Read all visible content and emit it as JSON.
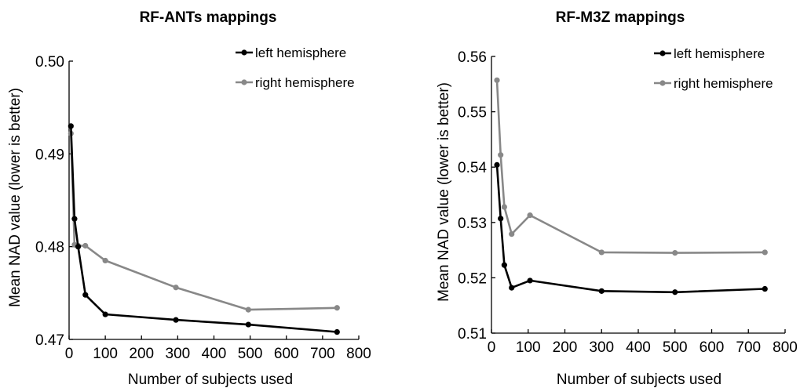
{
  "chart_data": [
    {
      "type": "line",
      "title": "RF-ANTs mappings",
      "xlabel": "Number of subjects used",
      "ylabel": "Mean NAD value (lower is better)",
      "xlim": [
        0,
        800
      ],
      "ylim": [
        0.47,
        0.5
      ],
      "xticks": [
        0,
        100,
        200,
        300,
        400,
        500,
        600,
        700,
        800
      ],
      "yticks": [
        0.47,
        0.48,
        0.49,
        0.5
      ],
      "ytick_labels": [
        "0.47",
        "0.48",
        "0.49",
        "0.50"
      ],
      "legend_position": "top-right",
      "series": [
        {
          "name": "left hemisphere",
          "color": "#000000",
          "x": [
            5,
            15,
            25,
            45,
            100,
            295,
            495,
            740
          ],
          "y": [
            0.493,
            0.483,
            0.48,
            0.4748,
            0.4727,
            0.4721,
            0.4716,
            0.4708
          ]
        },
        {
          "name": "right hemisphere",
          "color": "#888888",
          "x": [
            5,
            15,
            25,
            45,
            100,
            295,
            495,
            740
          ],
          "y": [
            0.4922,
            0.4802,
            0.4801,
            0.4801,
            0.4785,
            0.4756,
            0.4732,
            0.4734
          ]
        }
      ]
    },
    {
      "type": "line",
      "title": "RF-M3Z mappings",
      "xlabel": "Number of subjects used",
      "ylabel": "Mean NAD value (lower is better)",
      "xlim": [
        0,
        800
      ],
      "ylim": [
        0.51,
        0.56
      ],
      "xticks": [
        0,
        100,
        200,
        300,
        400,
        500,
        600,
        700,
        800
      ],
      "yticks": [
        0.51,
        0.52,
        0.53,
        0.54,
        0.55,
        0.56
      ],
      "ytick_labels": [
        "0.51",
        "0.52",
        "0.53",
        "0.54",
        "0.55",
        "0.56"
      ],
      "legend_position": "top-right",
      "series": [
        {
          "name": "left hemisphere",
          "color": "#000000",
          "x": [
            15,
            25,
            35,
            55,
            105,
            300,
            500,
            745
          ],
          "y": [
            0.5404,
            0.5307,
            0.5223,
            0.5182,
            0.5195,
            0.5176,
            0.5174,
            0.518
          ]
        },
        {
          "name": "right hemisphere",
          "color": "#888888",
          "x": [
            15,
            25,
            35,
            55,
            105,
            300,
            500,
            745
          ],
          "y": [
            0.5557,
            0.5422,
            0.5328,
            0.5279,
            0.5313,
            0.5246,
            0.5245,
            0.5246
          ]
        }
      ]
    }
  ]
}
